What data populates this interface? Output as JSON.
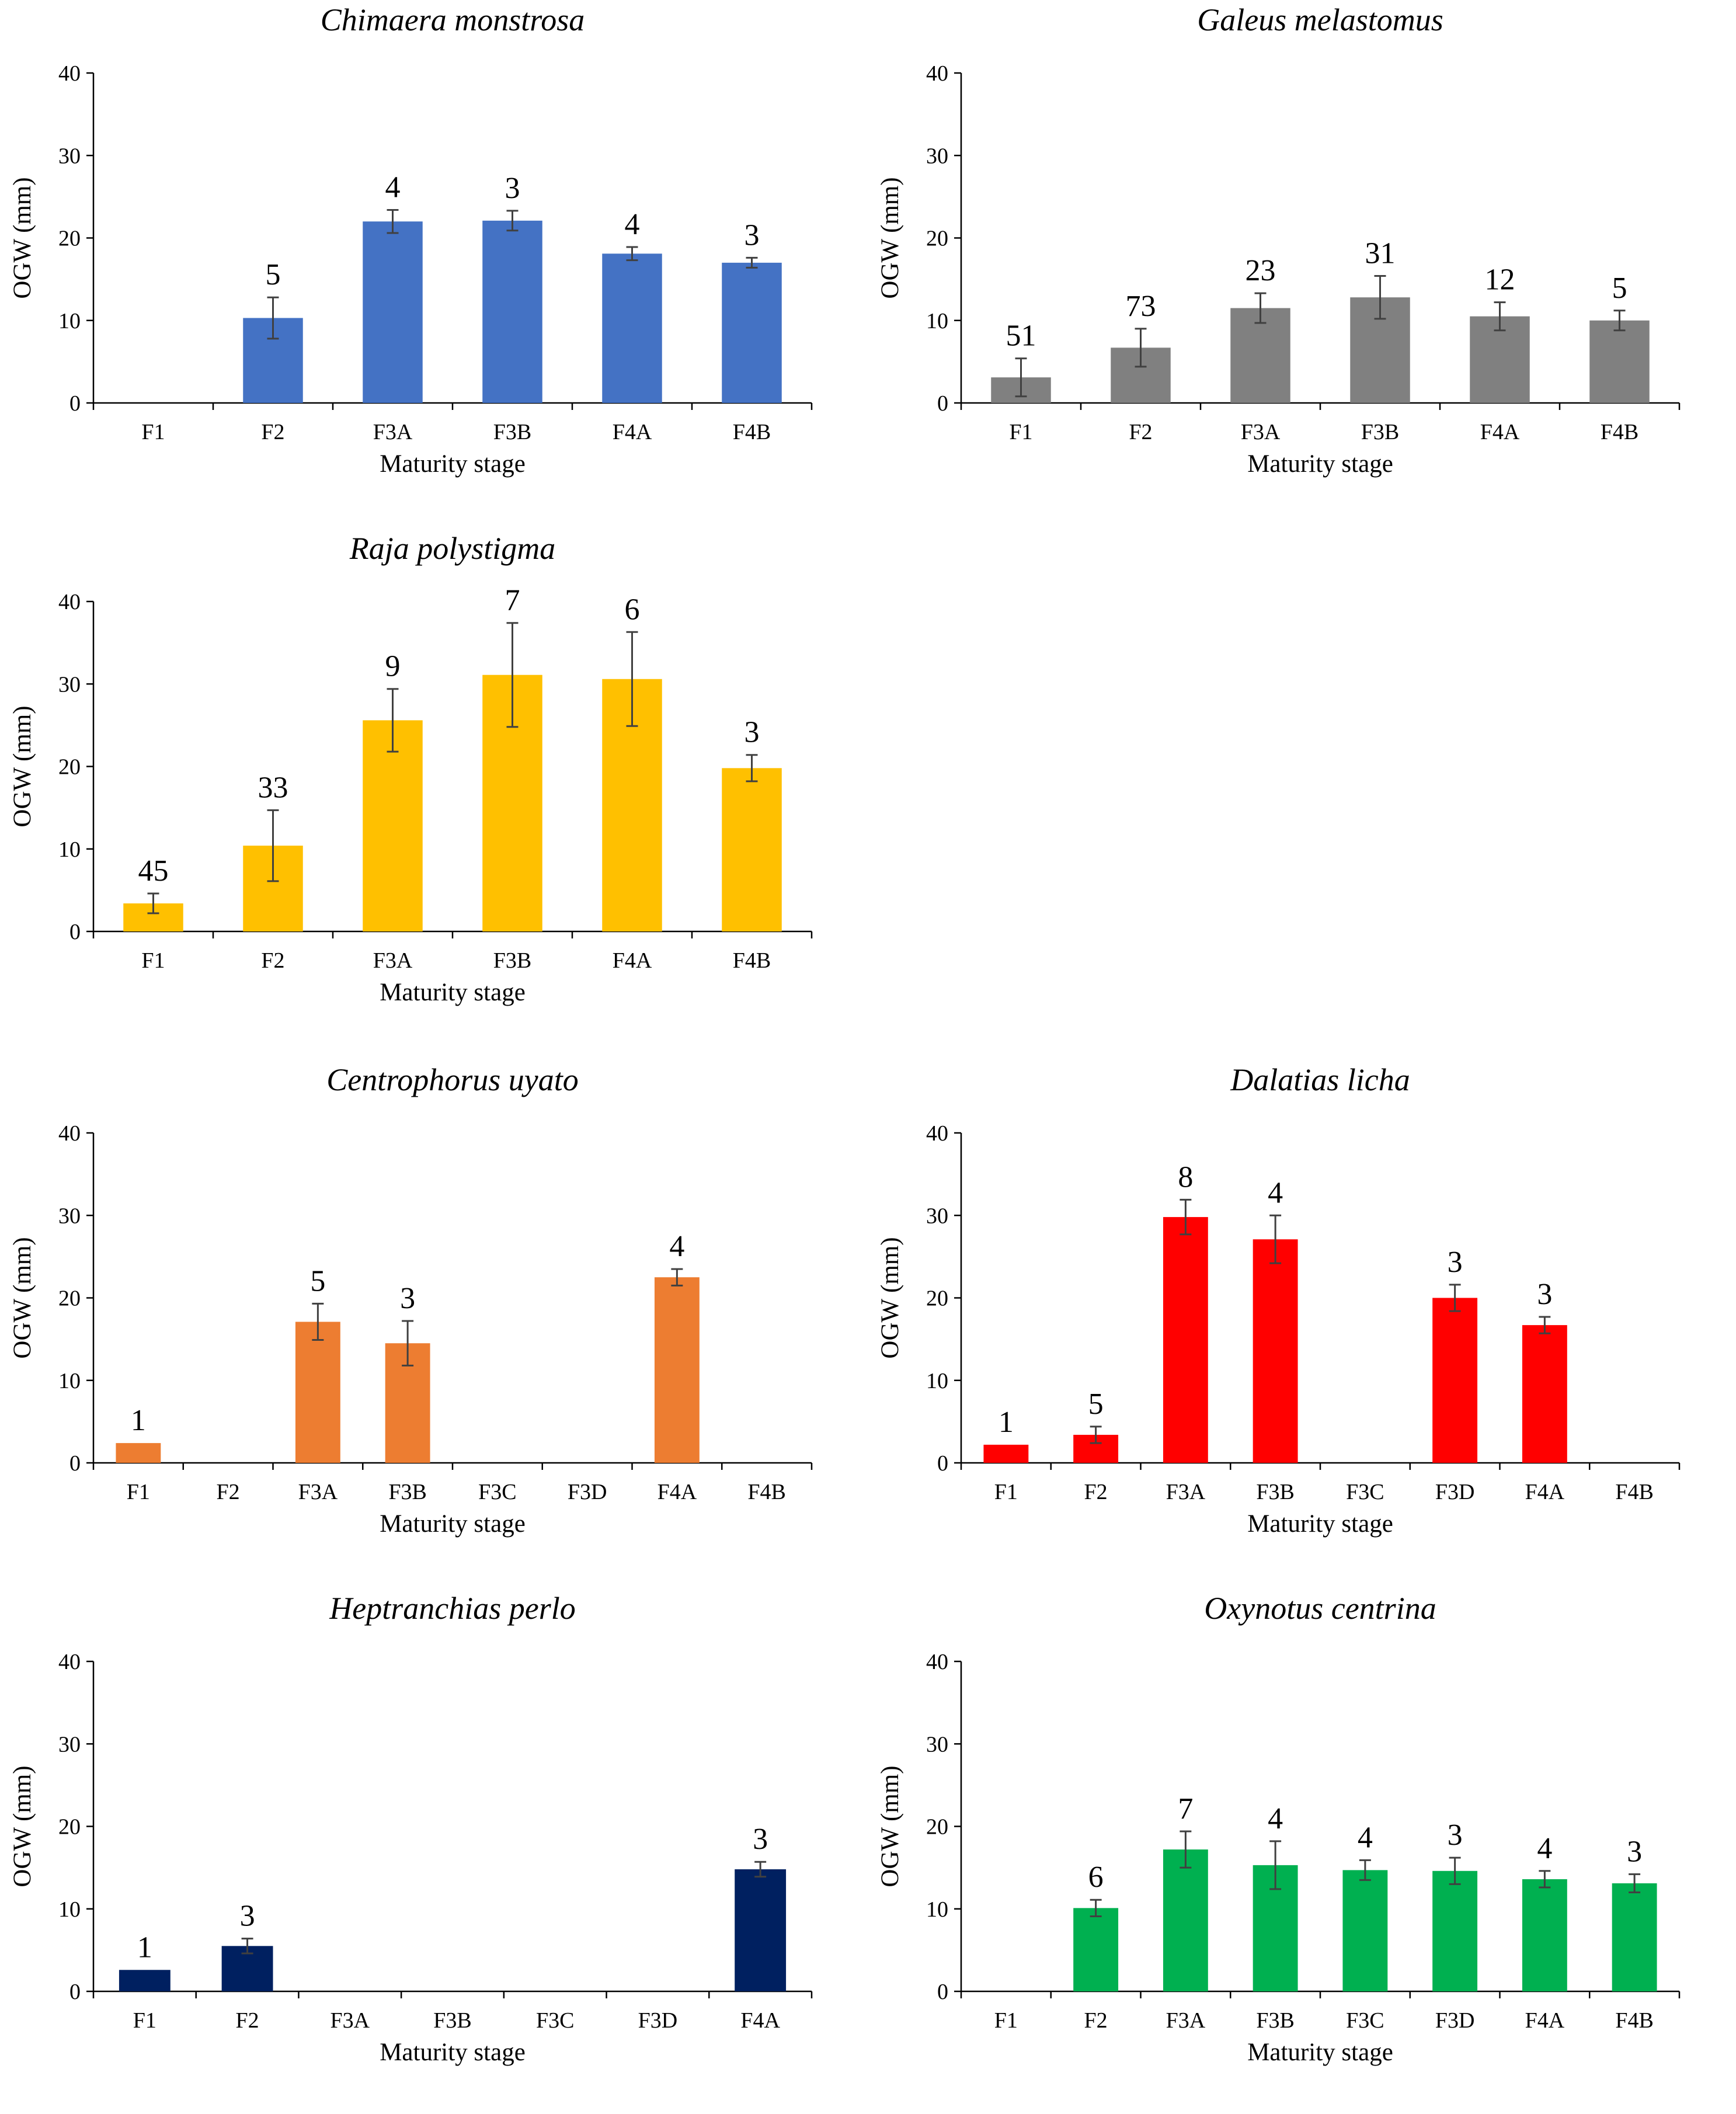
{
  "chart_data": [
    {
      "type": "bar",
      "title": "Chimaera monstrosa",
      "xlabel": "Maturity stage",
      "ylabel": "OGW (mm)",
      "ylim": [
        0,
        40
      ],
      "yticks": [
        "0",
        "10",
        "20",
        "30",
        "40"
      ],
      "color": "#4472C4",
      "categories": [
        "F1",
        "F2",
        "F3A",
        "F3B",
        "F4A",
        "F4B"
      ],
      "values": [
        null,
        10.3,
        22.0,
        22.1,
        18.1,
        17.0
      ],
      "errors": [
        null,
        2.5,
        1.4,
        1.2,
        0.8,
        0.6
      ],
      "n_labels": [
        null,
        "5",
        "4",
        "3",
        "4",
        "3"
      ]
    },
    {
      "type": "bar",
      "title": "Galeus melastomus",
      "xlabel": "Maturity stage",
      "ylabel": "OGW (mm)",
      "ylim": [
        0,
        40
      ],
      "yticks": [
        "0",
        "10",
        "20",
        "30",
        "40"
      ],
      "color": "#808080",
      "categories": [
        "F1",
        "F2",
        "F3A",
        "F3B",
        "F4A",
        "F4B"
      ],
      "values": [
        3.1,
        6.7,
        11.5,
        12.8,
        10.5,
        10.0
      ],
      "errors": [
        2.3,
        2.3,
        1.8,
        2.6,
        1.7,
        1.2
      ],
      "n_labels": [
        "51",
        "73",
        "23",
        "31",
        "12",
        "5"
      ]
    },
    {
      "type": "bar",
      "title": "Raja polystigma",
      "xlabel": "Maturity stage",
      "ylabel": "OGW (mm)",
      "ylim": [
        0,
        40
      ],
      "yticks": [
        "0",
        "10",
        "20",
        "30",
        "40"
      ],
      "color": "#FFC000",
      "categories": [
        "F1",
        "F2",
        "F3A",
        "F3B",
        "F4A",
        "F4B"
      ],
      "values": [
        3.4,
        10.4,
        25.6,
        31.1,
        30.6,
        19.8
      ],
      "errors": [
        1.2,
        4.3,
        3.8,
        6.3,
        5.7,
        1.6
      ],
      "n_labels": [
        "45",
        "33",
        "9",
        "7",
        "6",
        "3"
      ]
    },
    {
      "type": "bar",
      "title": "Centrophorus uyato",
      "xlabel": "Maturity stage",
      "ylabel": "OGW (mm)",
      "ylim": [
        0,
        40
      ],
      "yticks": [
        "0",
        "10",
        "20",
        "30",
        "40"
      ],
      "color": "#ED7D31",
      "categories": [
        "F1",
        "F2",
        "F3A",
        "F3B",
        "F3C",
        "F3D",
        "F4A",
        "F4B"
      ],
      "values": [
        2.4,
        null,
        17.1,
        14.5,
        null,
        null,
        22.5,
        null
      ],
      "errors": [
        null,
        null,
        2.2,
        2.7,
        null,
        null,
        1.0,
        null
      ],
      "n_labels": [
        "1",
        null,
        "5",
        "3",
        null,
        null,
        "4",
        null
      ]
    },
    {
      "type": "bar",
      "title": "Dalatias licha",
      "xlabel": "Maturity stage",
      "ylabel": "OGW (mm)",
      "ylim": [
        0,
        40
      ],
      "yticks": [
        "0",
        "10",
        "20",
        "30",
        "40"
      ],
      "color": "#FF0000",
      "categories": [
        "F1",
        "F2",
        "F3A",
        "F3B",
        "F3C",
        "F3D",
        "F4A",
        "F4B"
      ],
      "values": [
        2.2,
        3.4,
        29.8,
        27.1,
        null,
        20.0,
        16.7,
        null
      ],
      "errors": [
        null,
        1.0,
        2.1,
        2.9,
        null,
        1.6,
        1.0,
        null
      ],
      "n_labels": [
        "1",
        "5",
        "8",
        "4",
        null,
        "3",
        "3",
        null
      ]
    },
    {
      "type": "bar",
      "title": "Heptranchias perlo",
      "xlabel": "Maturity stage",
      "ylabel": "OGW (mm)",
      "ylim": [
        0,
        40
      ],
      "yticks": [
        "0",
        "10",
        "20",
        "30",
        "40"
      ],
      "color": "#002060",
      "categories": [
        "F1",
        "F2",
        "F3A",
        "F3B",
        "F3C",
        "F3D",
        "F4A"
      ],
      "values": [
        2.6,
        5.5,
        null,
        null,
        null,
        null,
        14.8
      ],
      "errors": [
        null,
        0.9,
        null,
        null,
        null,
        null,
        0.9
      ],
      "n_labels": [
        "1",
        "3",
        null,
        null,
        null,
        null,
        "3"
      ]
    },
    {
      "type": "bar",
      "title": "Oxynotus centrina",
      "xlabel": "Maturity stage",
      "ylabel": "OGW (mm)",
      "ylim": [
        0,
        40
      ],
      "yticks": [
        "0",
        "10",
        "20",
        "30",
        "40"
      ],
      "color": "#00B050",
      "categories": [
        "F1",
        "F2",
        "F3A",
        "F3B",
        "F3C",
        "F3D",
        "F4A",
        "F4B"
      ],
      "values": [
        null,
        10.1,
        17.2,
        15.3,
        14.7,
        14.6,
        13.6,
        13.1
      ],
      "errors": [
        null,
        1.0,
        2.2,
        2.9,
        1.2,
        1.6,
        1.0,
        1.1
      ],
      "n_labels": [
        null,
        "6",
        "7",
        "4",
        "4",
        "3",
        "4",
        "3"
      ]
    }
  ]
}
